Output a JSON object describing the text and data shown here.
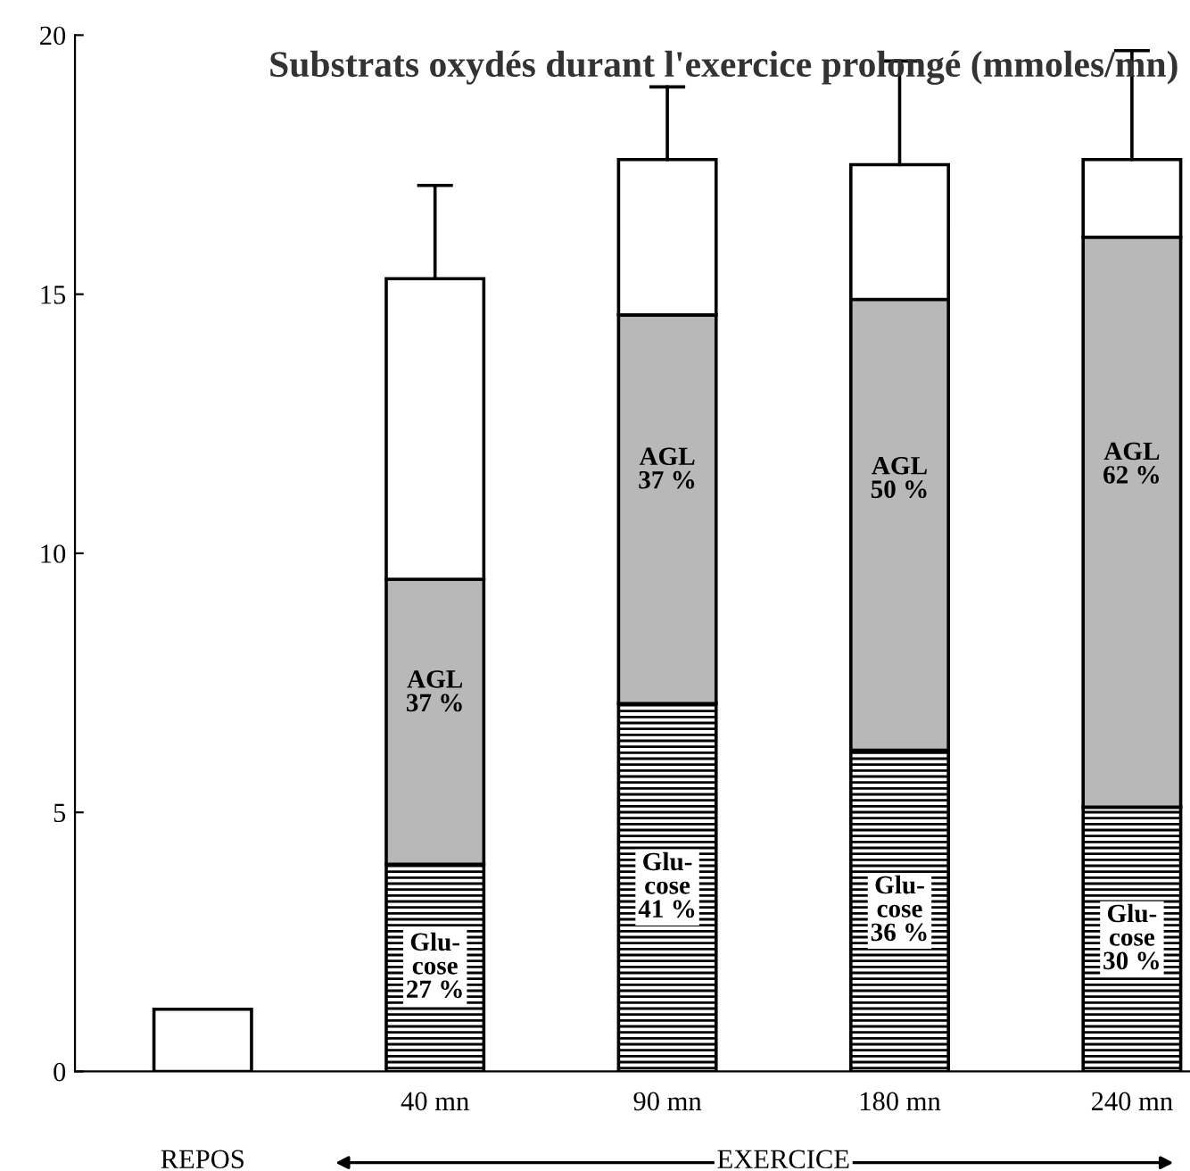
{
  "chart_data": {
    "type": "bar",
    "stacked": true,
    "title": "Substrats oxydés durant l'exercice prolongé (mmoles/mn)",
    "categories": [
      null,
      "40 mn",
      "90 mn",
      "180 mn",
      "240 mn"
    ],
    "series": [
      {
        "color": "#000000",
        "values": [
          null,
          4.0,
          7.1,
          6.2,
          5.1
        ]
      },
      {
        "color": "#b8b8b8",
        "values": [
          null,
          5.5,
          7.5,
          8.7,
          11.0
        ]
      },
      {
        "color": "#ffffff",
        "values": [
          1.2,
          5.8,
          3.0,
          2.6,
          1.5
        ],
        "errors": [
          null,
          [
            15.3,
            17.1
          ],
          [
            17.6,
            19.0
          ],
          [
            17.5,
            19.5
          ],
          [
            17.6,
            19.7
          ]
        ]
      }
    ],
    "ylim": [
      0,
      20
    ],
    "yticks": [
      0,
      5,
      10,
      15,
      20
    ],
    "grid": false,
    "annotations": [
      "Glu-\ncose\n27 %",
      "AGL\n37 %",
      "Glu-\ncose\n41 %",
      "AGL\n37 %",
      "Glu-\ncose\n36 %",
      "AGL\n50 %",
      "Glu-\ncose\n30 %",
      "AGL\n62 %",
      "REPOS",
      "EXERCICE"
    ]
  }
}
